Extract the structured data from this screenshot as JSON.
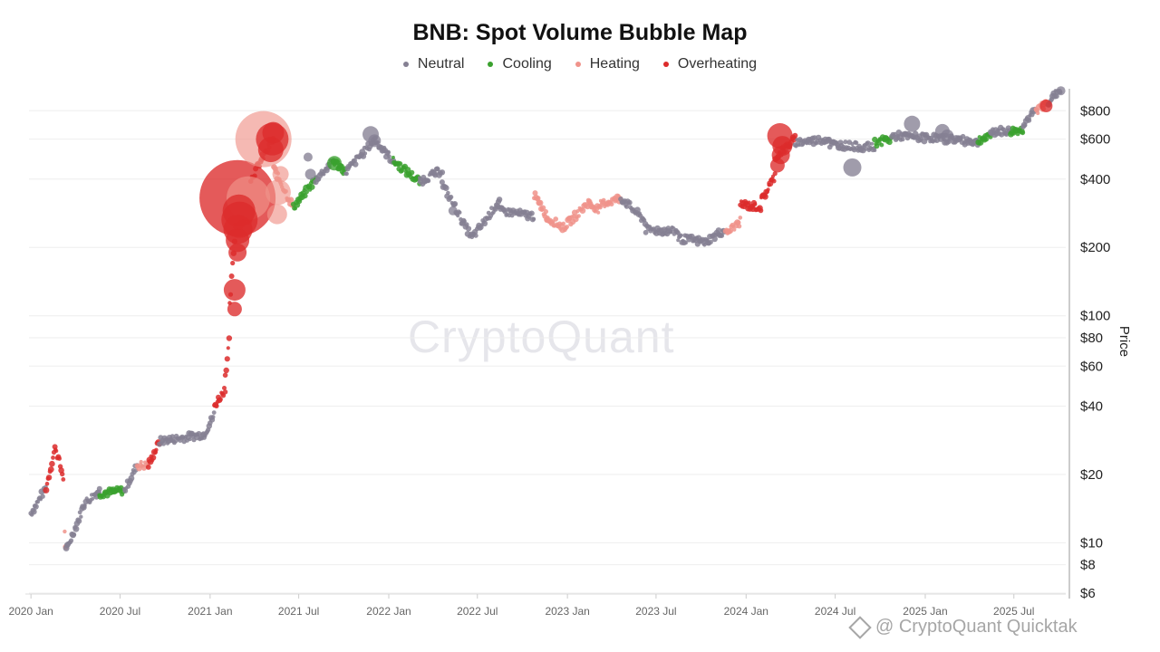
{
  "chart_data": {
    "type": "scatter",
    "title": "BNB: Spot Volume Bubble Map",
    "ylabel": "Price",
    "y_scale": "log",
    "ylim": [
      6,
      1000
    ],
    "xlim": [
      "2019-12-28",
      "2025-10-15"
    ],
    "y_ticks": [
      {
        "value": 6,
        "label": "$6"
      },
      {
        "value": 8,
        "label": "$8"
      },
      {
        "value": 10,
        "label": "$10"
      },
      {
        "value": 20,
        "label": "$20"
      },
      {
        "value": 40,
        "label": "$40"
      },
      {
        "value": 60,
        "label": "$60"
      },
      {
        "value": 80,
        "label": "$80"
      },
      {
        "value": 100,
        "label": "$100"
      },
      {
        "value": 200,
        "label": "$200"
      },
      {
        "value": 400,
        "label": "$400"
      },
      {
        "value": 600,
        "label": "$600"
      },
      {
        "value": 800,
        "label": "$800"
      }
    ],
    "x_ticks": [
      {
        "date": "2020-01-01",
        "label": "2020 Jan"
      },
      {
        "date": "2020-07-01",
        "label": "2020 Jul"
      },
      {
        "date": "2021-01-01",
        "label": "2021 Jan"
      },
      {
        "date": "2021-07-01",
        "label": "2021 Jul"
      },
      {
        "date": "2022-01-01",
        "label": "2022 Jan"
      },
      {
        "date": "2022-07-01",
        "label": "2022 Jul"
      },
      {
        "date": "2023-01-01",
        "label": "2023 Jan"
      },
      {
        "date": "2023-07-01",
        "label": "2023 Jul"
      },
      {
        "date": "2024-01-01",
        "label": "2024 Jan"
      },
      {
        "date": "2024-07-01",
        "label": "2024 Jul"
      },
      {
        "date": "2025-01-01",
        "label": "2025 Jan"
      },
      {
        "date": "2025-07-01",
        "label": "2025 Jul"
      }
    ],
    "grid": true,
    "legend_position": "top-center",
    "series": [
      {
        "name": "Neutral",
        "color": "#858093"
      },
      {
        "name": "Cooling",
        "color": "#3aa12e"
      },
      {
        "name": "Heating",
        "color": "#f0938b"
      },
      {
        "name": "Overheating",
        "color": "#dc2b2b"
      }
    ],
    "segments": [
      {
        "start": "2020-01-01",
        "end": "2020-02-01",
        "from": 13.5,
        "to": 17.5,
        "s": "Neutral"
      },
      {
        "start": "2020-02-01",
        "end": "2020-02-20",
        "from": 17.5,
        "to": 26.5,
        "s": "Overheating"
      },
      {
        "start": "2020-02-20",
        "end": "2020-03-08",
        "from": 26.5,
        "to": 19,
        "s": "Overheating"
      },
      {
        "start": "2020-03-10",
        "end": "2020-03-13",
        "from": 11,
        "to": 9.2,
        "s": "Heating"
      },
      {
        "start": "2020-03-13",
        "end": "2020-04-20",
        "from": 9.2,
        "to": 15,
        "s": "Neutral"
      },
      {
        "start": "2020-04-20",
        "end": "2020-05-20",
        "from": 15,
        "to": 17,
        "s": "Neutral"
      },
      {
        "start": "2020-05-20",
        "end": "2020-07-10",
        "from": 16.5,
        "to": 17,
        "s": "Cooling"
      },
      {
        "start": "2020-07-10",
        "end": "2020-08-05",
        "from": 17,
        "to": 22,
        "s": "Neutral"
      },
      {
        "start": "2020-08-05",
        "end": "2020-08-28",
        "from": 22,
        "to": 22,
        "s": "Heating"
      },
      {
        "start": "2020-08-28",
        "end": "2020-09-20",
        "from": 22,
        "to": 28,
        "s": "Overheating"
      },
      {
        "start": "2020-09-20",
        "end": "2020-12-20",
        "from": 28,
        "to": 30,
        "s": "Neutral"
      },
      {
        "start": "2020-12-20",
        "end": "2021-01-10",
        "from": 30,
        "to": 37,
        "s": "Neutral"
      },
      {
        "start": "2021-01-10",
        "end": "2021-02-01",
        "from": 40,
        "to": 48,
        "s": "Overheating"
      },
      {
        "start": "2021-02-01",
        "end": "2021-02-10",
        "from": 55,
        "to": 80,
        "s": "Overheating"
      },
      {
        "start": "2021-02-10",
        "end": "2021-02-22",
        "from": 110,
        "to": 250,
        "s": "Overheating"
      },
      {
        "start": "2021-02-22",
        "end": "2021-03-25",
        "from": 250,
        "to": 270,
        "s": "Heating"
      },
      {
        "start": "2021-03-25",
        "end": "2021-05-10",
        "from": 400,
        "to": 600,
        "s": "Overheating"
      },
      {
        "start": "2021-05-10",
        "end": "2021-06-20",
        "from": 450,
        "to": 300,
        "s": "Heating"
      },
      {
        "start": "2021-06-20",
        "end": "2021-08-05",
        "from": 300,
        "to": 400,
        "s": "Cooling"
      },
      {
        "start": "2021-08-05",
        "end": "2021-09-10",
        "from": 400,
        "to": 480,
        "s": "Neutral"
      },
      {
        "start": "2021-09-10",
        "end": "2021-10-05",
        "from": 480,
        "to": 430,
        "s": "Cooling"
      },
      {
        "start": "2021-10-05",
        "end": "2021-12-05",
        "from": 430,
        "to": 600,
        "s": "Neutral"
      },
      {
        "start": "2021-12-05",
        "end": "2022-01-10",
        "from": 590,
        "to": 480,
        "s": "Neutral"
      },
      {
        "start": "2022-01-10",
        "end": "2022-03-05",
        "from": 480,
        "to": 390,
        "s": "Cooling"
      },
      {
        "start": "2022-03-05",
        "end": "2022-04-20",
        "from": 390,
        "to": 440,
        "s": "Neutral"
      },
      {
        "start": "2022-04-20",
        "end": "2022-06-20",
        "from": 380,
        "to": 220,
        "s": "Neutral"
      },
      {
        "start": "2022-06-20",
        "end": "2022-08-15",
        "from": 220,
        "to": 320,
        "s": "Neutral"
      },
      {
        "start": "2022-08-15",
        "end": "2022-10-25",
        "from": 290,
        "to": 275,
        "s": "Neutral"
      },
      {
        "start": "2022-10-25",
        "end": "2022-11-20",
        "from": 340,
        "to": 275,
        "s": "Heating"
      },
      {
        "start": "2022-11-20",
        "end": "2022-12-25",
        "from": 270,
        "to": 245,
        "s": "Heating"
      },
      {
        "start": "2022-12-25",
        "end": "2023-02-15",
        "from": 245,
        "to": 320,
        "s": "Heating"
      },
      {
        "start": "2023-02-15",
        "end": "2023-03-10",
        "from": 310,
        "to": 290,
        "s": "Heating"
      },
      {
        "start": "2023-03-10",
        "end": "2023-04-20",
        "from": 310,
        "to": 330,
        "s": "Heating"
      },
      {
        "start": "2023-04-20",
        "end": "2023-06-10",
        "from": 330,
        "to": 260,
        "s": "Neutral"
      },
      {
        "start": "2023-06-10",
        "end": "2023-08-15",
        "from": 240,
        "to": 235,
        "s": "Neutral"
      },
      {
        "start": "2023-08-15",
        "end": "2023-10-15",
        "from": 220,
        "to": 210,
        "s": "Neutral"
      },
      {
        "start": "2023-10-15",
        "end": "2023-11-20",
        "from": 215,
        "to": 240,
        "s": "Neutral"
      },
      {
        "start": "2023-11-20",
        "end": "2023-12-20",
        "from": 230,
        "to": 260,
        "s": "Heating"
      },
      {
        "start": "2023-12-20",
        "end": "2024-02-01",
        "from": 310,
        "to": 300,
        "s": "Overheating"
      },
      {
        "start": "2024-02-01",
        "end": "2024-03-01",
        "from": 320,
        "to": 420,
        "s": "Overheating"
      },
      {
        "start": "2024-03-01",
        "end": "2024-04-10",
        "from": 500,
        "to": 600,
        "s": "Overheating"
      },
      {
        "start": "2024-04-10",
        "end": "2024-06-20",
        "from": 580,
        "to": 600,
        "s": "Neutral"
      },
      {
        "start": "2024-06-20",
        "end": "2024-09-20",
        "from": 570,
        "to": 550,
        "s": "Neutral"
      },
      {
        "start": "2024-09-20",
        "end": "2024-10-25",
        "from": 580,
        "to": 600,
        "s": "Cooling"
      },
      {
        "start": "2024-10-25",
        "end": "2025-03-01",
        "from": 620,
        "to": 600,
        "s": "Neutral"
      },
      {
        "start": "2025-03-01",
        "end": "2025-04-20",
        "from": 600,
        "to": 580,
        "s": "Neutral"
      },
      {
        "start": "2025-04-20",
        "end": "2025-05-15",
        "from": 600,
        "to": 610,
        "s": "Cooling"
      },
      {
        "start": "2025-05-15",
        "end": "2025-06-25",
        "from": 650,
        "to": 650,
        "s": "Neutral"
      },
      {
        "start": "2025-06-25",
        "end": "2025-07-20",
        "from": 650,
        "to": 660,
        "s": "Cooling"
      },
      {
        "start": "2025-07-20",
        "end": "2025-08-15",
        "from": 700,
        "to": 800,
        "s": "Neutral"
      },
      {
        "start": "2025-08-15",
        "end": "2025-09-10",
        "from": 800,
        "to": 880,
        "s": "Heating"
      },
      {
        "start": "2025-09-10",
        "end": "2025-10-05",
        "from": 880,
        "to": 1000,
        "s": "Neutral"
      }
    ],
    "bubbles": [
      {
        "date": "2021-02-26",
        "price": 330,
        "s": "Overheating",
        "r": 42
      },
      {
        "date": "2021-04-20",
        "price": 600,
        "s": "Heating",
        "r": 31
      },
      {
        "date": "2021-03-20",
        "price": 330,
        "s": "Heating",
        "r": 24
      },
      {
        "date": "2021-03-01",
        "price": 290,
        "s": "Overheating",
        "r": 18
      },
      {
        "date": "2021-03-02",
        "price": 265,
        "s": "Overheating",
        "r": 20
      },
      {
        "date": "2021-02-27",
        "price": 240,
        "s": "Overheating",
        "r": 16
      },
      {
        "date": "2021-02-26",
        "price": 215,
        "s": "Overheating",
        "r": 13
      },
      {
        "date": "2021-02-26",
        "price": 190,
        "s": "Overheating",
        "r": 10
      },
      {
        "date": "2021-02-20",
        "price": 130,
        "s": "Overheating",
        "r": 12
      },
      {
        "date": "2021-02-20",
        "price": 107,
        "s": "Overheating",
        "r": 8
      },
      {
        "date": "2021-05-08",
        "price": 600,
        "s": "Overheating",
        "r": 18
      },
      {
        "date": "2021-05-05",
        "price": 540,
        "s": "Overheating",
        "r": 14
      },
      {
        "date": "2021-05-10",
        "price": 640,
        "s": "Overheating",
        "r": 12
      },
      {
        "date": "2021-05-20",
        "price": 350,
        "s": "Heating",
        "r": 14
      },
      {
        "date": "2021-05-18",
        "price": 280,
        "s": "Heating",
        "r": 11
      },
      {
        "date": "2021-05-25",
        "price": 420,
        "s": "Heating",
        "r": 9
      },
      {
        "date": "2021-07-25",
        "price": 420,
        "s": "Neutral",
        "r": 6
      },
      {
        "date": "2021-07-20",
        "price": 500,
        "s": "Neutral",
        "r": 5
      },
      {
        "date": "2021-09-12",
        "price": 470,
        "s": "Cooling",
        "r": 8
      },
      {
        "date": "2021-11-25",
        "price": 630,
        "s": "Neutral",
        "r": 9
      },
      {
        "date": "2021-12-03",
        "price": 590,
        "s": "Neutral",
        "r": 7
      },
      {
        "date": "2022-05-12",
        "price": 290,
        "s": "Neutral",
        "r": 5
      },
      {
        "date": "2024-03-10",
        "price": 620,
        "s": "Overheating",
        "r": 14
      },
      {
        "date": "2024-03-15",
        "price": 560,
        "s": "Overheating",
        "r": 11
      },
      {
        "date": "2024-03-12",
        "price": 510,
        "s": "Overheating",
        "r": 10
      },
      {
        "date": "2024-03-05",
        "price": 460,
        "s": "Overheating",
        "r": 8
      },
      {
        "date": "2024-08-05",
        "price": 450,
        "s": "Neutral",
        "r": 10
      },
      {
        "date": "2024-12-05",
        "price": 700,
        "s": "Neutral",
        "r": 9
      },
      {
        "date": "2025-02-05",
        "price": 650,
        "s": "Neutral",
        "r": 8
      },
      {
        "date": "2025-02-15",
        "price": 620,
        "s": "Neutral",
        "r": 7
      },
      {
        "date": "2025-09-05",
        "price": 840,
        "s": "Overheating",
        "r": 7
      },
      {
        "date": "2025-10-05",
        "price": 980,
        "s": "Neutral",
        "r": 5
      }
    ]
  },
  "watermark": "CryptoQuant",
  "source_label": "@ CryptoQuant Quicktak"
}
